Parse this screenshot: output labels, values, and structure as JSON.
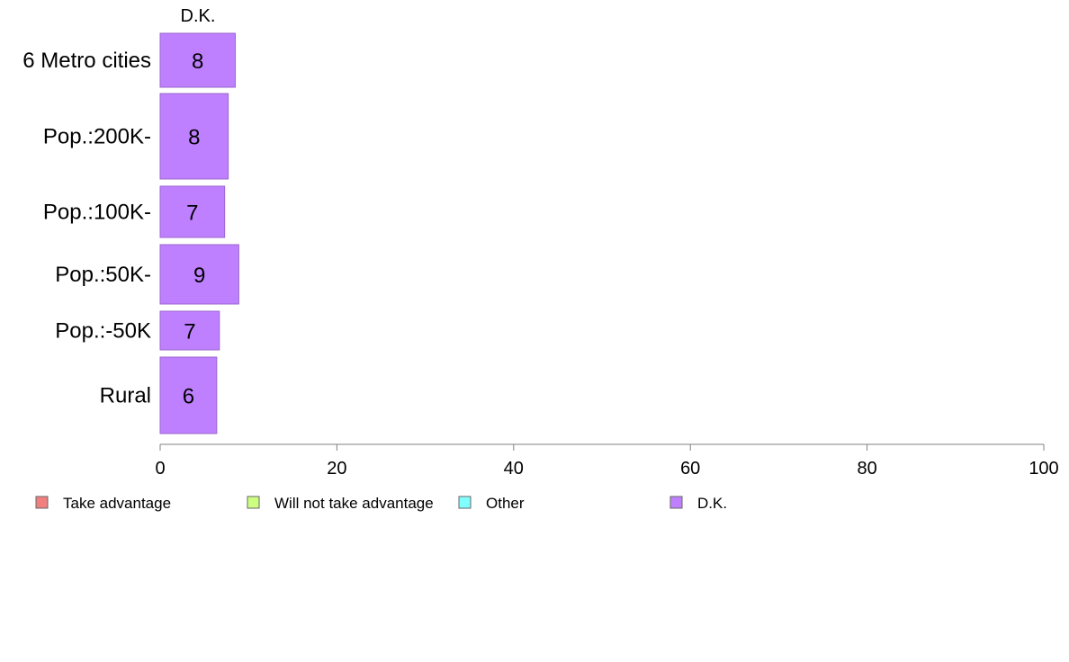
{
  "chart_data": {
    "type": "bar",
    "orientation": "horizontal",
    "stacked": true,
    "categories": [
      "6 Metro cities",
      "Pop.:200K-",
      "Pop.:100K-",
      "Pop.:50K-",
      "Pop.:-50K",
      "Rural"
    ],
    "series": [
      {
        "name": "Take advantage",
        "color": "#f08080",
        "values": [
          null,
          null,
          null,
          null,
          null,
          null
        ]
      },
      {
        "name": "Will not take advantage",
        "color": "#ccff80",
        "values": [
          null,
          null,
          null,
          null,
          null,
          null
        ]
      },
      {
        "name": "Other",
        "color": "#80ffff",
        "values": [
          null,
          null,
          null,
          null,
          null,
          null
        ]
      },
      {
        "name": "D.K.",
        "color": "#bf80ff",
        "values": [
          8.5,
          7.7,
          7.3,
          8.9,
          6.7,
          6.4
        ],
        "labels": [
          "8",
          "8",
          "7",
          "9",
          "7",
          "6"
        ]
      }
    ],
    "visible_series_header": "D.K.",
    "xlim": [
      0,
      100
    ],
    "xticks": [
      0,
      20,
      40,
      60,
      80,
      100
    ],
    "tick_labels": [
      "0",
      "20",
      "40",
      "60",
      "80",
      "100"
    ],
    "title": "",
    "xlabel": "",
    "ylabel": "",
    "grid": false,
    "legend_position": "bottom"
  }
}
